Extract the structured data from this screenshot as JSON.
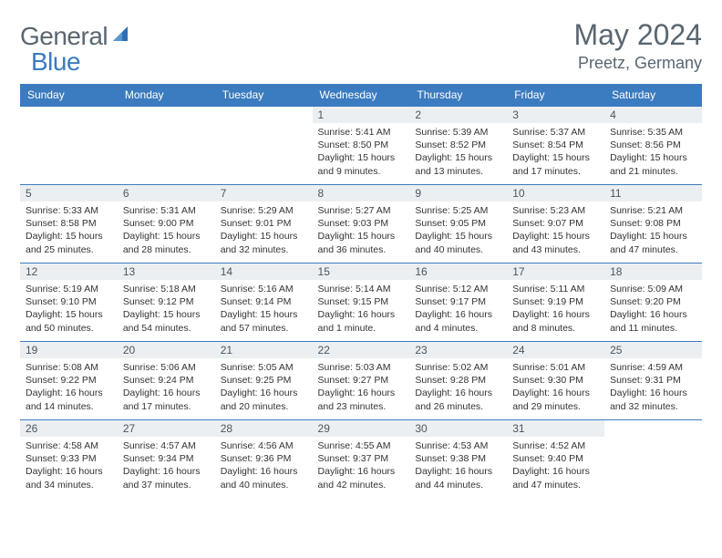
{
  "brand": {
    "part1": "General",
    "part2": "Blue"
  },
  "title": "May 2024",
  "location": "Preetz, Germany",
  "header_bg": "#3b7bbf",
  "weekdays": [
    "Sunday",
    "Monday",
    "Tuesday",
    "Wednesday",
    "Thursday",
    "Friday",
    "Saturday"
  ],
  "weeks": [
    [
      {
        "day": "",
        "sunrise": "",
        "sunset": "",
        "daylight": ""
      },
      {
        "day": "",
        "sunrise": "",
        "sunset": "",
        "daylight": ""
      },
      {
        "day": "",
        "sunrise": "",
        "sunset": "",
        "daylight": ""
      },
      {
        "day": "1",
        "sunrise": "Sunrise: 5:41 AM",
        "sunset": "Sunset: 8:50 PM",
        "daylight": "Daylight: 15 hours and 9 minutes."
      },
      {
        "day": "2",
        "sunrise": "Sunrise: 5:39 AM",
        "sunset": "Sunset: 8:52 PM",
        "daylight": "Daylight: 15 hours and 13 minutes."
      },
      {
        "day": "3",
        "sunrise": "Sunrise: 5:37 AM",
        "sunset": "Sunset: 8:54 PM",
        "daylight": "Daylight: 15 hours and 17 minutes."
      },
      {
        "day": "4",
        "sunrise": "Sunrise: 5:35 AM",
        "sunset": "Sunset: 8:56 PM",
        "daylight": "Daylight: 15 hours and 21 minutes."
      }
    ],
    [
      {
        "day": "5",
        "sunrise": "Sunrise: 5:33 AM",
        "sunset": "Sunset: 8:58 PM",
        "daylight": "Daylight: 15 hours and 25 minutes."
      },
      {
        "day": "6",
        "sunrise": "Sunrise: 5:31 AM",
        "sunset": "Sunset: 9:00 PM",
        "daylight": "Daylight: 15 hours and 28 minutes."
      },
      {
        "day": "7",
        "sunrise": "Sunrise: 5:29 AM",
        "sunset": "Sunset: 9:01 PM",
        "daylight": "Daylight: 15 hours and 32 minutes."
      },
      {
        "day": "8",
        "sunrise": "Sunrise: 5:27 AM",
        "sunset": "Sunset: 9:03 PM",
        "daylight": "Daylight: 15 hours and 36 minutes."
      },
      {
        "day": "9",
        "sunrise": "Sunrise: 5:25 AM",
        "sunset": "Sunset: 9:05 PM",
        "daylight": "Daylight: 15 hours and 40 minutes."
      },
      {
        "day": "10",
        "sunrise": "Sunrise: 5:23 AM",
        "sunset": "Sunset: 9:07 PM",
        "daylight": "Daylight: 15 hours and 43 minutes."
      },
      {
        "day": "11",
        "sunrise": "Sunrise: 5:21 AM",
        "sunset": "Sunset: 9:08 PM",
        "daylight": "Daylight: 15 hours and 47 minutes."
      }
    ],
    [
      {
        "day": "12",
        "sunrise": "Sunrise: 5:19 AM",
        "sunset": "Sunset: 9:10 PM",
        "daylight": "Daylight: 15 hours and 50 minutes."
      },
      {
        "day": "13",
        "sunrise": "Sunrise: 5:18 AM",
        "sunset": "Sunset: 9:12 PM",
        "daylight": "Daylight: 15 hours and 54 minutes."
      },
      {
        "day": "14",
        "sunrise": "Sunrise: 5:16 AM",
        "sunset": "Sunset: 9:14 PM",
        "daylight": "Daylight: 15 hours and 57 minutes."
      },
      {
        "day": "15",
        "sunrise": "Sunrise: 5:14 AM",
        "sunset": "Sunset: 9:15 PM",
        "daylight": "Daylight: 16 hours and 1 minute."
      },
      {
        "day": "16",
        "sunrise": "Sunrise: 5:12 AM",
        "sunset": "Sunset: 9:17 PM",
        "daylight": "Daylight: 16 hours and 4 minutes."
      },
      {
        "day": "17",
        "sunrise": "Sunrise: 5:11 AM",
        "sunset": "Sunset: 9:19 PM",
        "daylight": "Daylight: 16 hours and 8 minutes."
      },
      {
        "day": "18",
        "sunrise": "Sunrise: 5:09 AM",
        "sunset": "Sunset: 9:20 PM",
        "daylight": "Daylight: 16 hours and 11 minutes."
      }
    ],
    [
      {
        "day": "19",
        "sunrise": "Sunrise: 5:08 AM",
        "sunset": "Sunset: 9:22 PM",
        "daylight": "Daylight: 16 hours and 14 minutes."
      },
      {
        "day": "20",
        "sunrise": "Sunrise: 5:06 AM",
        "sunset": "Sunset: 9:24 PM",
        "daylight": "Daylight: 16 hours and 17 minutes."
      },
      {
        "day": "21",
        "sunrise": "Sunrise: 5:05 AM",
        "sunset": "Sunset: 9:25 PM",
        "daylight": "Daylight: 16 hours and 20 minutes."
      },
      {
        "day": "22",
        "sunrise": "Sunrise: 5:03 AM",
        "sunset": "Sunset: 9:27 PM",
        "daylight": "Daylight: 16 hours and 23 minutes."
      },
      {
        "day": "23",
        "sunrise": "Sunrise: 5:02 AM",
        "sunset": "Sunset: 9:28 PM",
        "daylight": "Daylight: 16 hours and 26 minutes."
      },
      {
        "day": "24",
        "sunrise": "Sunrise: 5:01 AM",
        "sunset": "Sunset: 9:30 PM",
        "daylight": "Daylight: 16 hours and 29 minutes."
      },
      {
        "day": "25",
        "sunrise": "Sunrise: 4:59 AM",
        "sunset": "Sunset: 9:31 PM",
        "daylight": "Daylight: 16 hours and 32 minutes."
      }
    ],
    [
      {
        "day": "26",
        "sunrise": "Sunrise: 4:58 AM",
        "sunset": "Sunset: 9:33 PM",
        "daylight": "Daylight: 16 hours and 34 minutes."
      },
      {
        "day": "27",
        "sunrise": "Sunrise: 4:57 AM",
        "sunset": "Sunset: 9:34 PM",
        "daylight": "Daylight: 16 hours and 37 minutes."
      },
      {
        "day": "28",
        "sunrise": "Sunrise: 4:56 AM",
        "sunset": "Sunset: 9:36 PM",
        "daylight": "Daylight: 16 hours and 40 minutes."
      },
      {
        "day": "29",
        "sunrise": "Sunrise: 4:55 AM",
        "sunset": "Sunset: 9:37 PM",
        "daylight": "Daylight: 16 hours and 42 minutes."
      },
      {
        "day": "30",
        "sunrise": "Sunrise: 4:53 AM",
        "sunset": "Sunset: 9:38 PM",
        "daylight": "Daylight: 16 hours and 44 minutes."
      },
      {
        "day": "31",
        "sunrise": "Sunrise: 4:52 AM",
        "sunset": "Sunset: 9:40 PM",
        "daylight": "Daylight: 16 hours and 47 minutes."
      },
      {
        "day": "",
        "sunrise": "",
        "sunset": "",
        "daylight": ""
      }
    ]
  ]
}
